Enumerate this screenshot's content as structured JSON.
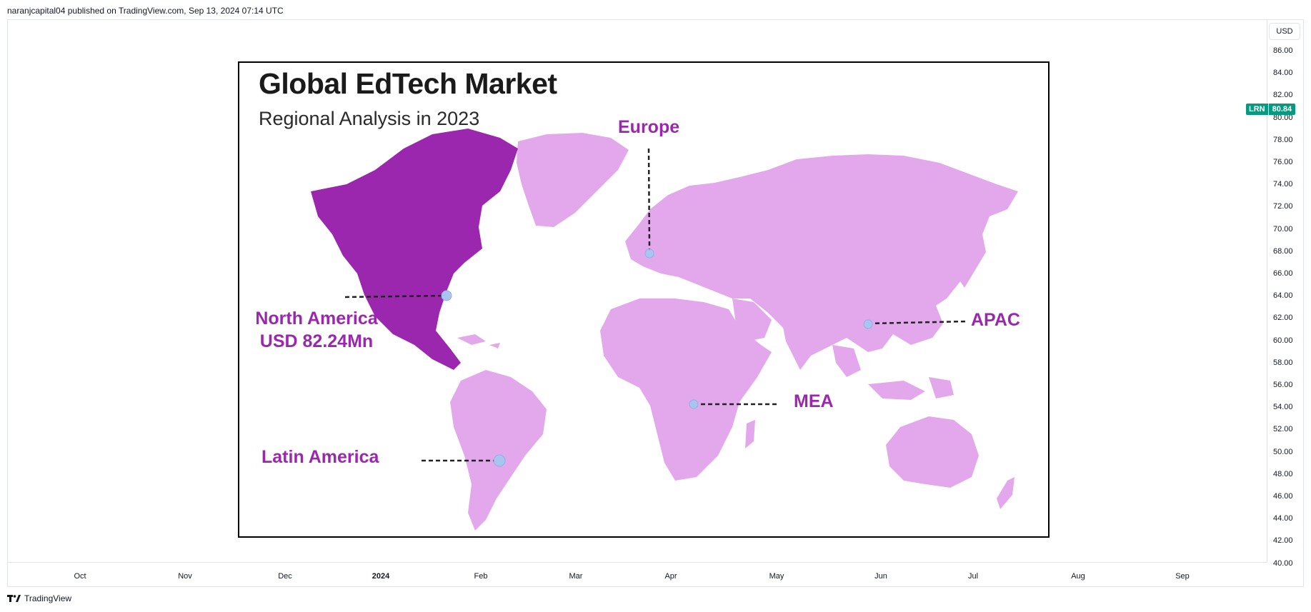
{
  "header": {
    "publish_info": "naranjcapital04 published on TradingView.com, Sep 13, 2024 07:14 UTC"
  },
  "price_axis": {
    "currency": "USD",
    "ticks": [
      "86.00",
      "84.00",
      "82.00",
      "80.00",
      "78.00",
      "76.00",
      "74.00",
      "72.00",
      "70.00",
      "68.00",
      "66.00",
      "64.00",
      "62.00",
      "60.00",
      "58.00",
      "56.00",
      "54.00",
      "52.00",
      "50.00",
      "48.00",
      "46.00",
      "44.00",
      "42.00",
      "40.00"
    ]
  },
  "time_axis": {
    "ticks": [
      {
        "label": "Oct",
        "bold": false
      },
      {
        "label": "Nov",
        "bold": false
      },
      {
        "label": "Dec",
        "bold": false
      },
      {
        "label": "2024",
        "bold": true
      },
      {
        "label": "Feb",
        "bold": false
      },
      {
        "label": "Mar",
        "bold": false
      },
      {
        "label": "Apr",
        "bold": false
      },
      {
        "label": "May",
        "bold": false
      },
      {
        "label": "Jun",
        "bold": false
      },
      {
        "label": "Jul",
        "bold": false
      },
      {
        "label": "Aug",
        "bold": false
      },
      {
        "label": "Sep",
        "bold": false
      }
    ]
  },
  "price_label": {
    "symbol": "LRN",
    "value": "80.84",
    "color": "#089981"
  },
  "embedded_image": {
    "title": "Global EdTech Market",
    "subtitle": "Regional Analysis in 2023",
    "colors": {
      "highlight": "#9b27af",
      "land": "#e3a8ec",
      "label": "#9b27af",
      "marker": "#a9c4ee"
    },
    "regions": {
      "north_america_line1": "North America",
      "north_america_line2": "USD 82.24Mn",
      "europe": "Europe",
      "apac": "APAC",
      "mea": "MEA",
      "latin_america": "Latin America"
    }
  },
  "chart_data": {
    "type": "line",
    "title": "",
    "series": [
      {
        "name": "LRN",
        "last_value": 80.84
      }
    ],
    "xlabel": "",
    "ylabel": "",
    "ylim": [
      40,
      86
    ],
    "x_ticks": [
      "Oct",
      "Nov",
      "Dec",
      "2024",
      "Feb",
      "Mar",
      "Apr",
      "May",
      "Jun",
      "Jul",
      "Aug",
      "Sep"
    ],
    "y_ticks": [
      86,
      84,
      82,
      80,
      78,
      76,
      74,
      72,
      70,
      68,
      66,
      64,
      62,
      60,
      58,
      56,
      54,
      52,
      50,
      48,
      46,
      44,
      42,
      40
    ],
    "grid": false
  },
  "footer": {
    "brand": "TradingView"
  }
}
